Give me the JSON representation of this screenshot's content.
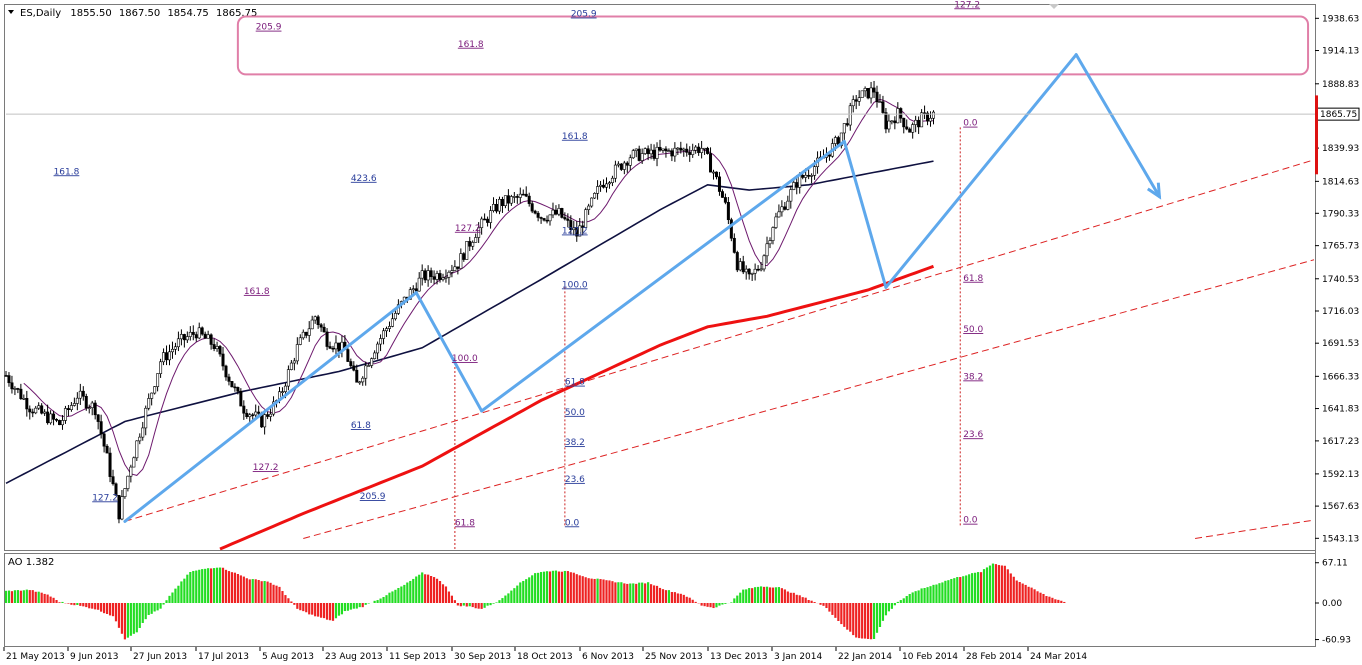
{
  "chart_data": [
    {
      "type": "candlestick",
      "title": "ES,Daily",
      "ohlc_readout": [
        "1855.50",
        "1867.50",
        "1854.75",
        "1865.75"
      ],
      "current_price_label": "1865.75",
      "current_price": 1865.75,
      "ylim": [
        1535,
        1948
      ],
      "y_ticks": [
        "1938.63",
        "1914.13",
        "1888.83",
        "1865.75",
        "1839.93",
        "1814.63",
        "1790.33",
        "1765.73",
        "1740.53",
        "1716.03",
        "1691.53",
        "1666.33",
        "1641.83",
        "1617.23",
        "1592.13",
        "1567.63",
        "1543.13"
      ],
      "x_ticks": [
        "21 May 2013",
        "9 Jun 2013",
        "27 Jun 2013",
        "17 Jul 2013",
        "5 Aug 2013",
        "23 Aug 2013",
        "11 Sep 2013",
        "30 Sep 2013",
        "18 Oct 2013",
        "6 Nov 2013",
        "25 Nov 2013",
        "13 Dec 2013",
        "3 Jan 2014",
        "22 Jan 2014",
        "10 Feb 2014",
        "28 Feb 2014",
        "24 Mar 2014"
      ],
      "price_path": [
        [
          0,
          1667
        ],
        [
          8,
          1643
        ],
        [
          18,
          1630
        ],
        [
          24,
          1652
        ],
        [
          30,
          1642
        ],
        [
          34,
          1604
        ],
        [
          38,
          1562
        ],
        [
          42,
          1600
        ],
        [
          46,
          1632
        ],
        [
          52,
          1678
        ],
        [
          58,
          1692
        ],
        [
          64,
          1700
        ],
        [
          70,
          1690
        ],
        [
          76,
          1660
        ],
        [
          80,
          1642
        ],
        [
          86,
          1632
        ],
        [
          92,
          1650
        ],
        [
          98,
          1688
        ],
        [
          104,
          1712
        ],
        [
          108,
          1694
        ],
        [
          114,
          1686
        ],
        [
          118,
          1660
        ],
        [
          124,
          1688
        ],
        [
          132,
          1718
        ],
        [
          140,
          1742
        ],
        [
          146,
          1744
        ],
        [
          152,
          1752
        ],
        [
          158,
          1776
        ],
        [
          166,
          1798
        ],
        [
          174,
          1803
        ],
        [
          180,
          1788
        ],
        [
          186,
          1790
        ],
        [
          192,
          1774
        ],
        [
          200,
          1812
        ],
        [
          210,
          1834
        ],
        [
          218,
          1836
        ],
        [
          226,
          1838
        ],
        [
          234,
          1840
        ],
        [
          238,
          1822
        ],
        [
          242,
          1796
        ],
        [
          246,
          1752
        ],
        [
          250,
          1740
        ],
        [
          254,
          1752
        ],
        [
          258,
          1782
        ],
        [
          266,
          1814
        ],
        [
          274,
          1830
        ],
        [
          280,
          1846
        ],
        [
          286,
          1878
        ],
        [
          292,
          1884
        ],
        [
          296,
          1858
        ],
        [
          300,
          1866
        ],
        [
          304,
          1854
        ],
        [
          308,
          1862
        ],
        [
          312,
          1866
        ]
      ],
      "moving_averages": [
        {
          "color": "#0f1140",
          "points": [
            [
              0,
              1585
            ],
            [
              40,
              1632
            ],
            [
              80,
              1655
            ],
            [
              112,
              1670
            ],
            [
              140,
              1688
            ],
            [
              180,
              1740
            ],
            [
              220,
              1793
            ],
            [
              236,
              1812
            ],
            [
              250,
              1808
            ],
            [
              270,
              1812
            ],
            [
              312,
              1830
            ]
          ]
        },
        {
          "color": "#ee1111",
          "points": [
            [
              72,
              1535
            ],
            [
              100,
              1562
            ],
            [
              140,
              1598
            ],
            [
              180,
              1648
            ],
            [
              220,
              1690
            ],
            [
              236,
              1704
            ],
            [
              256,
              1712
            ],
            [
              290,
              1732
            ],
            [
              312,
              1750
            ]
          ]
        }
      ],
      "fib_labels": [
        {
          "text": "161.8",
          "color": "#283c9a",
          "x": 16,
          "y": 1820
        },
        {
          "text": "423.6",
          "color": "#283c9a",
          "x": 116,
          "y": 1815
        },
        {
          "text": "161.8",
          "color": "#7a1a7a",
          "x": 80,
          "y": 1729
        },
        {
          "text": "127.2",
          "color": "#7a1a7a",
          "x": 83,
          "y": 1595
        },
        {
          "text": "205.9",
          "color": "#283c9a",
          "x": 119,
          "y": 1573
        },
        {
          "text": "127.2",
          "color": "#283c9a",
          "x": 29,
          "y": 1572
        },
        {
          "text": "61.8",
          "color": "#283c9a",
          "x": 116,
          "y": 1627
        },
        {
          "text": "127.2",
          "color": "#7a1a7a",
          "x": 151,
          "y": 1777
        },
        {
          "text": "100.0",
          "color": "#7a1a7a",
          "x": 150,
          "y": 1678
        },
        {
          "text": "61.8",
          "color": "#7a1a7a",
          "x": 151,
          "y": 1553
        },
        {
          "text": "161.8",
          "color": "#283c9a",
          "x": 187,
          "y": 1847
        },
        {
          "text": "127.2",
          "color": "#283c9a",
          "x": 187,
          "y": 1775
        },
        {
          "text": "100.0",
          "color": "#283c9a",
          "x": 187,
          "y": 1734
        },
        {
          "text": "61.8",
          "color": "#283c9a",
          "x": 188,
          "y": 1660
        },
        {
          "text": "50.0",
          "color": "#283c9a",
          "x": 188,
          "y": 1637
        },
        {
          "text": "38.2",
          "color": "#283c9a",
          "x": 188,
          "y": 1614
        },
        {
          "text": "23.6",
          "color": "#283c9a",
          "x": 188,
          "y": 1586
        },
        {
          "text": "0.0",
          "color": "#283c9a",
          "x": 188,
          "y": 1553
        },
        {
          "text": "61.8",
          "color": "#7a1a7a",
          "x": 322,
          "y": 1739
        },
        {
          "text": "50.0",
          "color": "#7a1a7a",
          "x": 322,
          "y": 1700
        },
        {
          "text": "38.2",
          "color": "#7a1a7a",
          "x": 322,
          "y": 1664
        },
        {
          "text": "23.6",
          "color": "#7a1a7a",
          "x": 322,
          "y": 1620
        },
        {
          "text": "0.0",
          "color": "#7a1a7a",
          "x": 322,
          "y": 1555
        },
        {
          "text": "0.0",
          "color": "#7a1a7a",
          "x": 322,
          "y": 1857
        },
        {
          "text": "127.2",
          "color": "#7a1a7a",
          "x": 319,
          "y": 1947
        },
        {
          "text": "205.9",
          "color": "#283c9a",
          "x": 190,
          "y": 1940
        },
        {
          "text": "161.8",
          "color": "#7a1a7a",
          "x": 152,
          "y": 1917
        },
        {
          "text": "205.9",
          "color": "#7a1a7a",
          "x": 84,
          "y": 1930
        }
      ],
      "fib_verticals": [
        {
          "x": 151,
          "y1": 1535,
          "y2": 1678,
          "color": "#cc2222"
        },
        {
          "x": 188,
          "y1": 1553,
          "y2": 1734,
          "color": "#cc2222"
        },
        {
          "x": 321,
          "y1": 1553,
          "y2": 1857,
          "color": "#cc2222"
        }
      ],
      "wave_lines": [
        [
          [
            40,
            1556
          ],
          [
            138,
            1730
          ]
        ],
        [
          [
            138,
            1730
          ],
          [
            160,
            1640
          ]
        ],
        [
          [
            160,
            1640
          ],
          [
            282,
            1845
          ]
        ],
        [
          [
            282,
            1845
          ],
          [
            296,
            1734
          ]
        ],
        [
          [
            296,
            1734
          ],
          [
            360,
            1911
          ]
        ],
        [
          [
            360,
            1911
          ],
          [
            388,
            1803
          ]
        ]
      ],
      "wave_line_color": "#5ea8ec",
      "channel_lines": [
        {
          "color": "#dd2222",
          "points": [
            [
              40,
              1556
            ],
            [
              440,
              1831
            ]
          ]
        },
        {
          "color": "#dd2222",
          "points": [
            [
              100,
              1543
            ],
            [
              440,
              1755
            ]
          ]
        },
        {
          "color": "#dd2222",
          "points": [
            [
              400,
              1543
            ],
            [
              440,
              1557
            ]
          ]
        }
      ],
      "target_zone": {
        "x1": 78,
        "x2": 438,
        "y1": 1896,
        "y2": 1940,
        "border": "#e07fa8"
      },
      "indicator": {
        "name": "AO 1.382",
        "y_ticks": [
          "67.11",
          "0.00",
          "-60.93"
        ],
        "ylim": [
          -70,
          80
        ],
        "up_color": "#22dd22",
        "down_color": "#ee2222",
        "values_path": [
          [
            0,
            20
          ],
          [
            8,
            22
          ],
          [
            14,
            14
          ],
          [
            18,
            2
          ],
          [
            24,
            -4
          ],
          [
            30,
            -10
          ],
          [
            36,
            -22
          ],
          [
            40,
            -60
          ],
          [
            44,
            -48
          ],
          [
            48,
            -20
          ],
          [
            52,
            -10
          ],
          [
            56,
            18
          ],
          [
            62,
            52
          ],
          [
            68,
            58
          ],
          [
            72,
            60
          ],
          [
            76,
            52
          ],
          [
            82,
            40
          ],
          [
            88,
            36
          ],
          [
            92,
            26
          ],
          [
            98,
            -10
          ],
          [
            104,
            -22
          ],
          [
            110,
            -30
          ],
          [
            114,
            -14
          ],
          [
            120,
            -6
          ],
          [
            126,
            8
          ],
          [
            134,
            30
          ],
          [
            140,
            50
          ],
          [
            144,
            44
          ],
          [
            148,
            28
          ],
          [
            152,
            -4
          ],
          [
            156,
            -6
          ],
          [
            160,
            -10
          ],
          [
            166,
            4
          ],
          [
            172,
            30
          ],
          [
            178,
            50
          ],
          [
            184,
            54
          ],
          [
            190,
            52
          ],
          [
            196,
            42
          ],
          [
            204,
            36
          ],
          [
            210,
            32
          ],
          [
            216,
            34
          ],
          [
            222,
            22
          ],
          [
            228,
            14
          ],
          [
            234,
            -4
          ],
          [
            238,
            -8
          ],
          [
            244,
            2
          ],
          [
            248,
            22
          ],
          [
            254,
            28
          ],
          [
            260,
            26
          ],
          [
            266,
            14
          ],
          [
            272,
            2
          ],
          [
            276,
            -8
          ],
          [
            280,
            -30
          ],
          [
            286,
            -58
          ],
          [
            292,
            -60
          ],
          [
            296,
            -20
          ],
          [
            300,
            2
          ],
          [
            306,
            20
          ],
          [
            312,
            30
          ],
          [
            318,
            40
          ],
          [
            324,
            48
          ],
          [
            328,
            52
          ],
          [
            332,
            66
          ],
          [
            336,
            62
          ],
          [
            340,
            38
          ],
          [
            346,
            22
          ],
          [
            350,
            12
          ],
          [
            356,
            2
          ]
        ]
      }
    }
  ]
}
